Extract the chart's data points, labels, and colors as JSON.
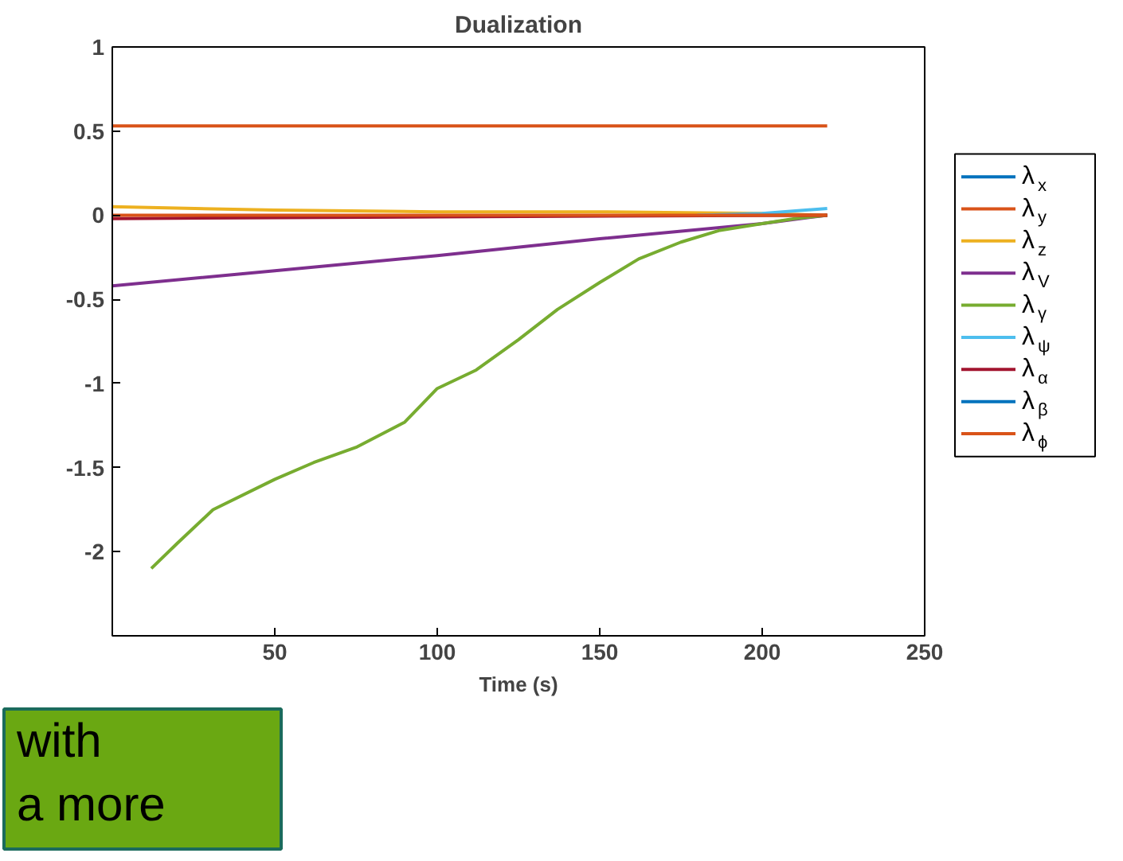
{
  "chart_data": {
    "type": "line",
    "title": "Dualization",
    "xlabel": "Time (s)",
    "xlim": [
      0,
      250
    ],
    "xticks": [
      50,
      100,
      150,
      200,
      250
    ],
    "ylim": [
      -2.5,
      1
    ],
    "yticks": [
      -2,
      -1.5,
      -1,
      -0.5,
      0,
      0.5,
      1
    ],
    "grid": false,
    "legend": "right",
    "line_style": "solid",
    "marker": "none",
    "annotations": [
      "with",
      "a more"
    ],
    "series": [
      {
        "name": "λ$_{x}$",
        "color": "#0072bd"
      },
      {
        "name": "λ$_{y}$",
        "color": "#d95319",
        "x": [
          0,
          110,
          220
        ],
        "values": [
          0.53,
          0.53,
          0.53
        ]
      },
      {
        "name": "λ$_{z}$",
        "color": "#edb120",
        "x": [
          0,
          50,
          100,
          150,
          200,
          220
        ],
        "values": [
          0.05,
          0.03,
          0.02,
          0.02,
          0.01,
          0
        ]
      },
      {
        "name": "λ$_{V}$",
        "color": "#7e2f8e",
        "x": [
          0,
          50,
          100,
          150,
          200,
          220
        ],
        "values": [
          -0.42,
          -0.33,
          -0.24,
          -0.14,
          -0.05,
          0
        ]
      },
      {
        "name": "λ$_{γ}$",
        "color": "#77ac30",
        "x": [
          12,
          20,
          31,
          50,
          62,
          75,
          90,
          100,
          112,
          125,
          137,
          150,
          162,
          175,
          187,
          200,
          210,
          220
        ],
        "values": [
          -2.1,
          -1.95,
          -1.75,
          -1.57,
          -1.47,
          -1.38,
          -1.23,
          -1.03,
          -0.92,
          -0.74,
          -0.56,
          -0.4,
          -0.26,
          -0.16,
          -0.09,
          -0.05,
          -0.02,
          0
        ]
      },
      {
        "name": "λ$_{ψ}$",
        "color": "#4dbeee",
        "x": [
          180,
          200,
          220
        ],
        "values": [
          0,
          0.01,
          0.04
        ]
      },
      {
        "name": "λ$_{α}$",
        "color": "#a2142f",
        "x": [
          0,
          100,
          220
        ],
        "values": [
          -0.02,
          -0.01,
          0
        ]
      },
      {
        "name": "λ$_{β}$",
        "color": "#0072bd"
      },
      {
        "name": "λ$_{ϕ}$",
        "color": "#d95319",
        "x": [
          0,
          110,
          220
        ],
        "values": [
          0,
          0,
          0
        ]
      }
    ]
  }
}
